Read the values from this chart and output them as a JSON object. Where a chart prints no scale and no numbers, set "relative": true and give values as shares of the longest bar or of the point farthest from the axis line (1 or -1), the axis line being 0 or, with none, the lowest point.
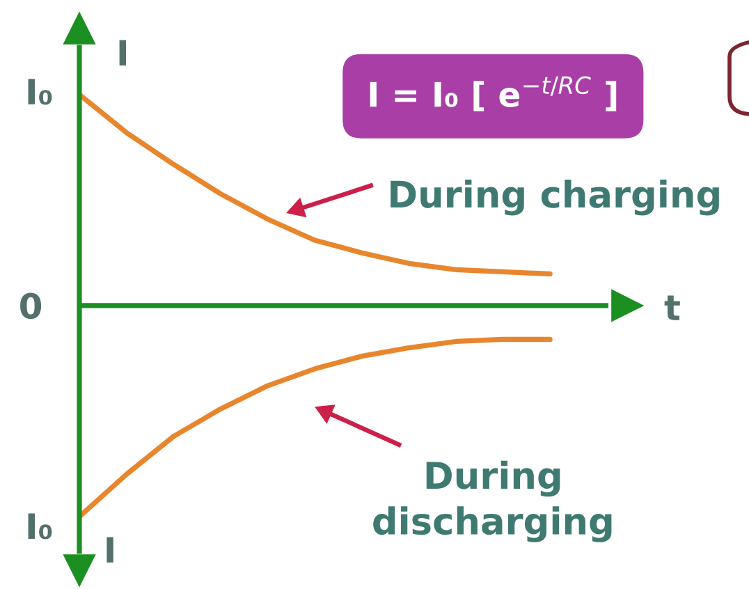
{
  "chart_data": {
    "type": "line",
    "relative": true,
    "title": "I = I₀ [ e$^{−t/RC}$ ]",
    "xlabel": "t",
    "ylabel": "I",
    "annotations": [
      "I₀",
      "0",
      "I₀",
      "I"
    ],
    "categories": [
      null,
      null,
      null,
      null,
      null,
      null,
      null,
      null,
      null,
      null,
      null
    ],
    "series": [
      {
        "name": "During charging",
        "color": "#e8862e",
        "values": [
          1.0,
          0.82,
          0.67,
          0.53,
          0.41,
          0.31,
          0.25,
          0.2,
          0.17,
          0.16,
          0.15
        ]
      },
      {
        "name": "During discharging",
        "color": "#e8862e",
        "values": [
          -1.0,
          -0.8,
          -0.62,
          -0.49,
          -0.38,
          -0.3,
          -0.24,
          -0.2,
          -0.17,
          -0.16,
          -0.16
        ]
      }
    ],
    "ref_lines": [
      {
        "axis": "y",
        "value": 0,
        "color": "#1b8f22"
      }
    ]
  }
}
